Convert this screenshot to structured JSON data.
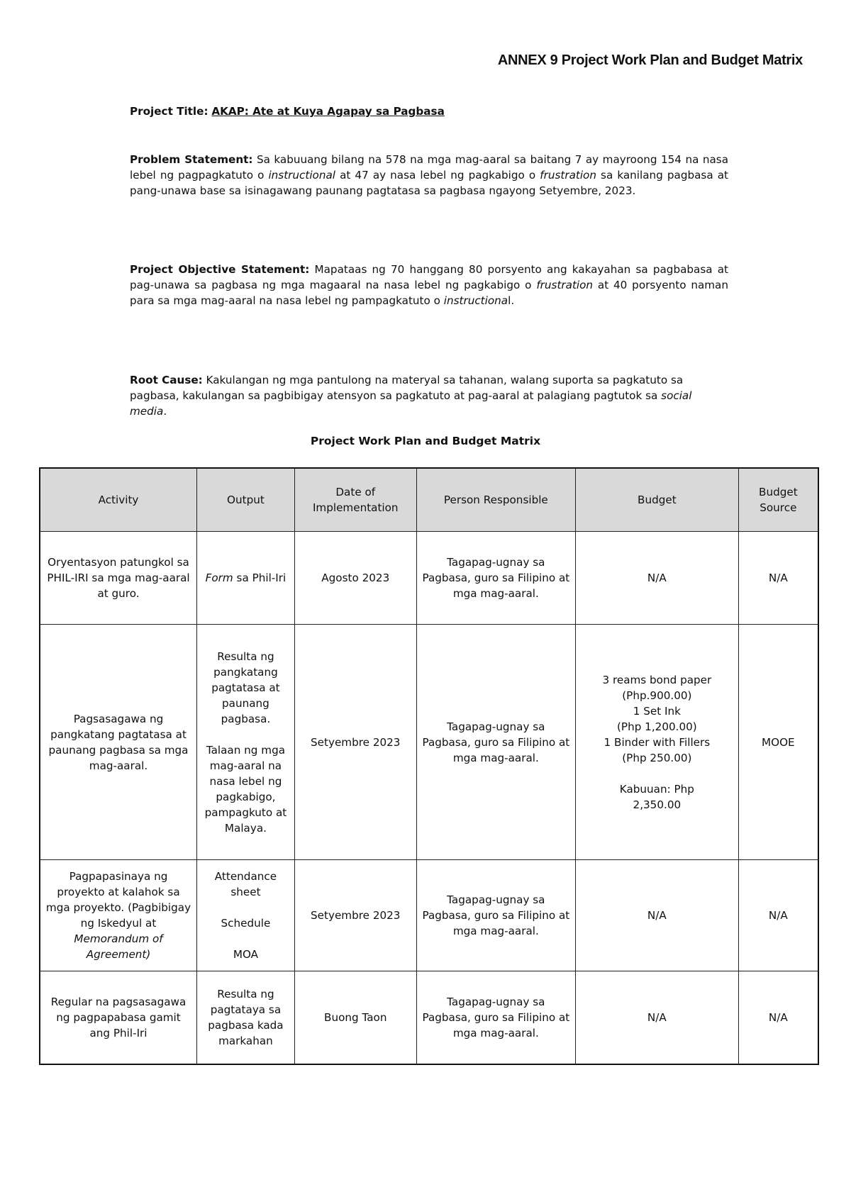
{
  "annex_header": "ANNEX 9 Project Work Plan and Budget Matrix",
  "project_title": {
    "label": "Project Title:",
    "value": "AKAP: Ate at Kuya Agapay sa Pagbasa"
  },
  "problem_statement": {
    "label": "Problem Statement:",
    "text_1": " Sa kabuuang bilang na 578 na mga mag-aaral sa baitang 7 ay mayroong 154 na nasa lebel ng pagpagkatuto o ",
    "italic_1": "instructional",
    "text_2": " at 47 ay nasa lebel ng pagkabigo o ",
    "italic_2": "frustration",
    "text_3": " sa kanilang pagbasa at pang-unawa base sa isinagawang paunang pagtatasa sa pagbasa ngayong Setyembre, 2023."
  },
  "objective_statement": {
    "label": "Project Objective Statement:",
    "text_1": " Mapataas ng 70 hanggang 80 porsyento ang kakayahan sa pagbabasa at pag-unawa sa pagbasa ng mga magaaral na nasa lebel ng pagkabigo o ",
    "italic_1": "frustration",
    "text_2": " at 40 porsyento naman para sa mga mag-aaral na nasa lebel ng pampagkatuto o ",
    "italic_2": "instructiona",
    "text_3": "l."
  },
  "root_cause": {
    "label": "Root Cause:",
    "text_1": " Kakulangan ng mga pantulong na materyal sa tahanan, walang suporta sa pagkatuto sa pagbasa, kakulangan sa pagbibigay atensyon sa pagkatuto at pag-aaral at palagiang pagtutok sa ",
    "italic_1": "social media",
    "text_2": "."
  },
  "table_title": "Project Work Plan and Budget Matrix",
  "table": {
    "headers": [
      "Activity",
      "Output",
      "Date of Implementation",
      "Person Responsible",
      "Budget",
      "Budget Source"
    ],
    "rows": [
      {
        "activity": "Oryentasyon patungkol sa PHIL-IRI sa mga mag-aaral at guro.",
        "output_italic": "Form",
        "output": " sa Phil-Iri",
        "date": "Agosto 2023",
        "person": "Tagapag-ugnay sa Pagbasa, guro sa Filipino at mga mag-aaral.",
        "budget": "N/A",
        "source": "N/A"
      },
      {
        "activity": "Pagsasagawa ng pangkatang pagtatasa at paunang pagbasa sa mga mag-aaral.",
        "output_1": "Resulta ng pangkatang pagtatasa at paunang pagbasa.",
        "output_2": "Talaan ng mga mag-aaral na nasa lebel ng pagkabigo, pampagkuto at Malaya.",
        "date": "Setyembre 2023",
        "person": "Tagapag-ugnay sa Pagbasa, guro sa Filipino at mga mag-aaral.",
        "budget_lines": [
          "3 reams bond paper",
          "(Php.900.00)",
          "1 Set Ink",
          "(Php 1,200.00)",
          "1 Binder with Fillers",
          "(Php 250.00)"
        ],
        "budget_total": "Kabuuan: Php 2,350.00",
        "source": "MOOE"
      },
      {
        "activity": "Pagpapasinaya ng proyekto at kalahok sa mga proyekto. (Pagbibigay ng Iskedyul at ",
        "activity_italic": "Memorandum of Agreement)",
        "output_1": "Attendance sheet",
        "output_2": "Schedule",
        "output_3": "MOA",
        "date": "Setyembre 2023",
        "person": "Tagapag-ugnay sa Pagbasa, guro sa Filipino at mga mag-aaral.",
        "budget": "N/A",
        "source": "N/A"
      },
      {
        "activity": "Regular na pagsasagawa ng pagpapabasa gamit ang Phil-Iri",
        "output": "Resulta ng pagtataya sa pagbasa kada markahan",
        "date": "Buong Taon",
        "person": "Tagapag-ugnay sa Pagbasa, guro sa Filipino at mga mag-aaral.",
        "budget": "N/A",
        "source": "N/A"
      }
    ]
  }
}
